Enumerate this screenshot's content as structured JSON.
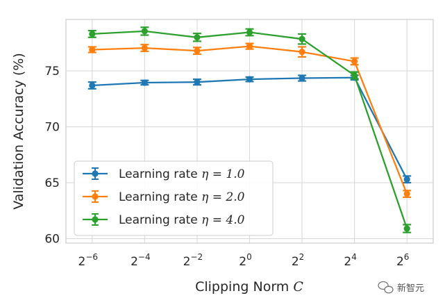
{
  "chart_data": {
    "type": "line",
    "x": [
      -6,
      -4,
      -2,
      0,
      2,
      4,
      6
    ],
    "x_tick_labels": [
      {
        "base": "2",
        "exp": "−6"
      },
      {
        "base": "2",
        "exp": "−4"
      },
      {
        "base": "2",
        "exp": "−2"
      },
      {
        "base": "2",
        "exp": "0"
      },
      {
        "base": "2",
        "exp": "2"
      },
      {
        "base": "2",
        "exp": "4"
      },
      {
        "base": "2",
        "exp": "6"
      }
    ],
    "xlabel_text": "Clipping Norm ",
    "xlabel_var": "C",
    "ylabel": "Validation Accuracy (%)",
    "ylim": [
      59.6,
      79.6
    ],
    "yticks": [
      60,
      65,
      70,
      75
    ],
    "grid": true,
    "legend_position": "lower-left",
    "series": [
      {
        "name_text": "Learning rate ",
        "name_eq": "η = 1.0",
        "color": "#1f77b4",
        "values": [
          73.7,
          73.95,
          74.0,
          74.25,
          74.35,
          74.4,
          65.3
        ],
        "errors": [
          0.3,
          0.2,
          0.25,
          0.2,
          0.25,
          0.2,
          0.3
        ]
      },
      {
        "name_text": "Learning rate ",
        "name_eq": "η = 2.0",
        "color": "#ff7f0e",
        "values": [
          76.9,
          77.05,
          76.8,
          77.2,
          76.7,
          75.85,
          64.0
        ],
        "errors": [
          0.25,
          0.3,
          0.3,
          0.25,
          0.45,
          0.3,
          0.3
        ]
      },
      {
        "name_text": "Learning rate ",
        "name_eq": "η = 4.0",
        "color": "#2ca02c",
        "values": [
          78.3,
          78.55,
          78.0,
          78.45,
          77.85,
          74.6,
          60.9
        ],
        "errors": [
          0.3,
          0.35,
          0.35,
          0.3,
          0.45,
          0.3,
          0.35
        ]
      }
    ]
  },
  "watermark": {
    "icon": "wechat-icon",
    "text": "新智元"
  }
}
